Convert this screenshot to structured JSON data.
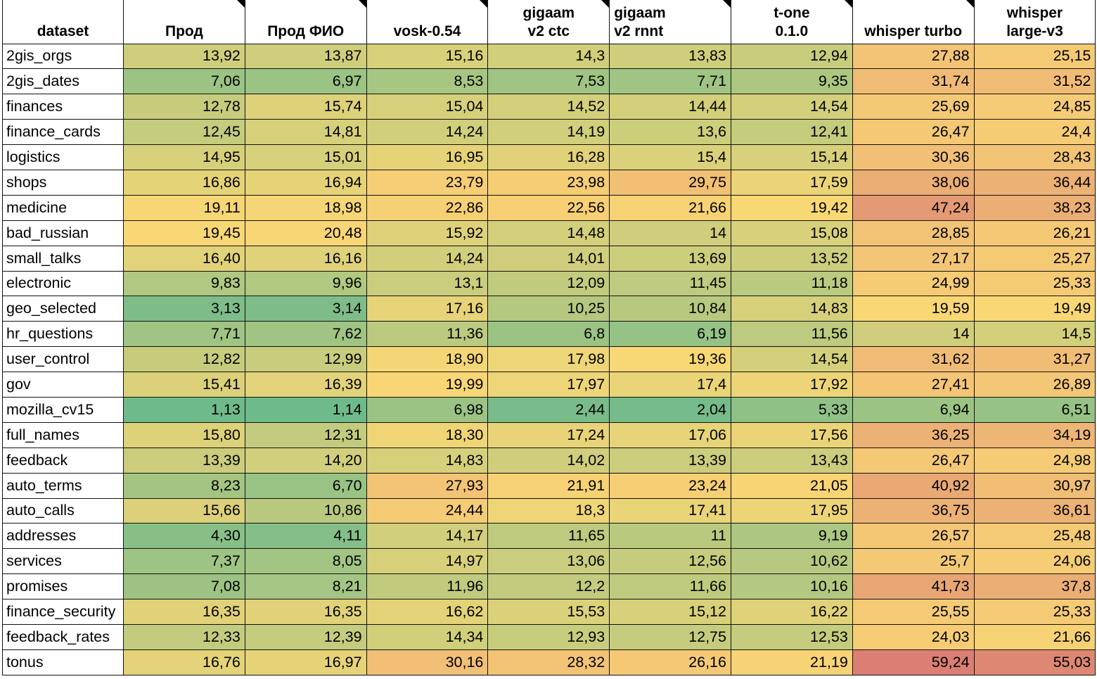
{
  "chart_data": {
    "type": "heatmap",
    "columns": [
      {
        "label": [
          "dataset"
        ],
        "align": "center",
        "note": false
      },
      {
        "label": [
          "Прод"
        ],
        "align": "center",
        "note": true
      },
      {
        "label": [
          "Прод ФИО"
        ],
        "align": "center",
        "note": true
      },
      {
        "label": [
          "vosk-0.54"
        ],
        "align": "center",
        "note": true
      },
      {
        "label": [
          "gigaam",
          "v2 ctc"
        ],
        "align": "center",
        "note": true
      },
      {
        "label": [
          "gigaam",
          "v2 rnnt"
        ],
        "align": "left",
        "note": true
      },
      {
        "label": [
          "t-one",
          "0.1.0"
        ],
        "align": "center",
        "note": true
      },
      {
        "label": [
          "whisper turbo"
        ],
        "align": "center",
        "note": true
      },
      {
        "label": [
          "whisper",
          "large-v3"
        ],
        "align": "center",
        "note": false
      }
    ],
    "rows": [
      {
        "dataset": "2gis_orgs",
        "values": [
          "13,92",
          "13,87",
          "15,16",
          "14,3",
          "13,83",
          "12,94",
          "27,88",
          "25,15"
        ]
      },
      {
        "dataset": "2gis_dates",
        "values": [
          "7,06",
          "6,97",
          "8,53",
          "7,53",
          "7,71",
          "9,35",
          "31,74",
          "31,52"
        ]
      },
      {
        "dataset": "finances",
        "values": [
          "12,78",
          "15,74",
          "15,04",
          "14,52",
          "14,44",
          "14,54",
          "25,69",
          "24,85"
        ]
      },
      {
        "dataset": "finance_cards",
        "values": [
          "12,45",
          "14,81",
          "14,24",
          "14,19",
          "13,6",
          "12,41",
          "26,47",
          "24,4"
        ]
      },
      {
        "dataset": "logistics",
        "values": [
          "14,95",
          "15,01",
          "16,95",
          "16,28",
          "15,4",
          "15,14",
          "30,36",
          "28,43"
        ]
      },
      {
        "dataset": "shops",
        "values": [
          "16,86",
          "16,94",
          "23,79",
          "23,98",
          "29,75",
          "17,59",
          "38,06",
          "36,44"
        ]
      },
      {
        "dataset": "medicine",
        "values": [
          "19,11",
          "18,98",
          "22,86",
          "22,56",
          "21,66",
          "19,42",
          "47,24",
          "38,23"
        ]
      },
      {
        "dataset": "bad_russian",
        "values": [
          "19,45",
          "20,48",
          "15,92",
          "14,48",
          "14",
          "15,08",
          "28,85",
          "26,21"
        ]
      },
      {
        "dataset": "small_talks",
        "values": [
          "16,40",
          "16,16",
          "14,24",
          "14,01",
          "13,69",
          "13,52",
          "27,17",
          "25,27"
        ]
      },
      {
        "dataset": "electronic",
        "values": [
          "9,83",
          "9,96",
          "13,1",
          "12,09",
          "11,45",
          "11,18",
          "24,99",
          "25,33"
        ]
      },
      {
        "dataset": "geo_selected",
        "values": [
          "3,13",
          "3,14",
          "17,16",
          "10,25",
          "10,84",
          "14,83",
          "19,59",
          "19,49"
        ]
      },
      {
        "dataset": "hr_questions",
        "values": [
          "7,71",
          "7,62",
          "11,36",
          "6,8",
          "6,19",
          "11,56",
          "14",
          "14,5"
        ]
      },
      {
        "dataset": "user_control",
        "values": [
          "12,82",
          "12,99",
          "18,90",
          "17,98",
          "19,36",
          "14,54",
          "31,62",
          "31,27"
        ]
      },
      {
        "dataset": "gov",
        "values": [
          "15,41",
          "16,39",
          "19,99",
          "17,97",
          "17,4",
          "17,92",
          "27,41",
          "26,89"
        ]
      },
      {
        "dataset": "mozilla_cv15",
        "values": [
          "1,13",
          "1,14",
          "6,98",
          "2,44",
          "2,04",
          "5,33",
          "6,94",
          "6,51"
        ]
      },
      {
        "dataset": "full_names",
        "values": [
          "15,80",
          "12,31",
          "18,30",
          "17,24",
          "17,06",
          "17,56",
          "36,25",
          "34,19"
        ]
      },
      {
        "dataset": "feedback",
        "values": [
          "13,39",
          "14,20",
          "14,83",
          "14,02",
          "13,39",
          "13,43",
          "26,47",
          "24,98"
        ]
      },
      {
        "dataset": "auto_terms",
        "values": [
          "8,23",
          "6,70",
          "27,93",
          "21,91",
          "23,24",
          "21,05",
          "40,92",
          "30,97"
        ]
      },
      {
        "dataset": "auto_calls",
        "values": [
          "15,66",
          "10,86",
          "24,44",
          "18,3",
          "17,41",
          "17,95",
          "36,75",
          "36,61"
        ]
      },
      {
        "dataset": "addresses",
        "values": [
          "4,30",
          "4,11",
          "14,17",
          "11,65",
          "11",
          "9,19",
          "26,57",
          "25,48"
        ]
      },
      {
        "dataset": "services",
        "values": [
          "7,37",
          "8,05",
          "14,97",
          "13,06",
          "12,56",
          "10,62",
          "25,7",
          "24,06"
        ]
      },
      {
        "dataset": "promises",
        "values": [
          "7,08",
          "8,21",
          "11,96",
          "12,2",
          "11,66",
          "10,16",
          "41,73",
          "37,8"
        ]
      },
      {
        "dataset": "finance_security",
        "values": [
          "16,35",
          "16,35",
          "16,62",
          "15,53",
          "15,12",
          "16,22",
          "25,55",
          "25,33"
        ]
      },
      {
        "dataset": "feedback_rates",
        "values": [
          "12,33",
          "12,39",
          "14,34",
          "12,93",
          "12,75",
          "12,53",
          "24,03",
          "21,66"
        ]
      },
      {
        "dataset": "tonus",
        "values": [
          "16,76",
          "16,97",
          "30,16",
          "28,32",
          "26,16",
          "21,19",
          "59,24",
          "55,03"
        ]
      }
    ],
    "color_scale": {
      "low": "#6fba8b",
      "mid": "#f9d775",
      "high": "#db7f74",
      "min": 1.13,
      "mid_value": 19.5,
      "max": 59.24
    }
  }
}
